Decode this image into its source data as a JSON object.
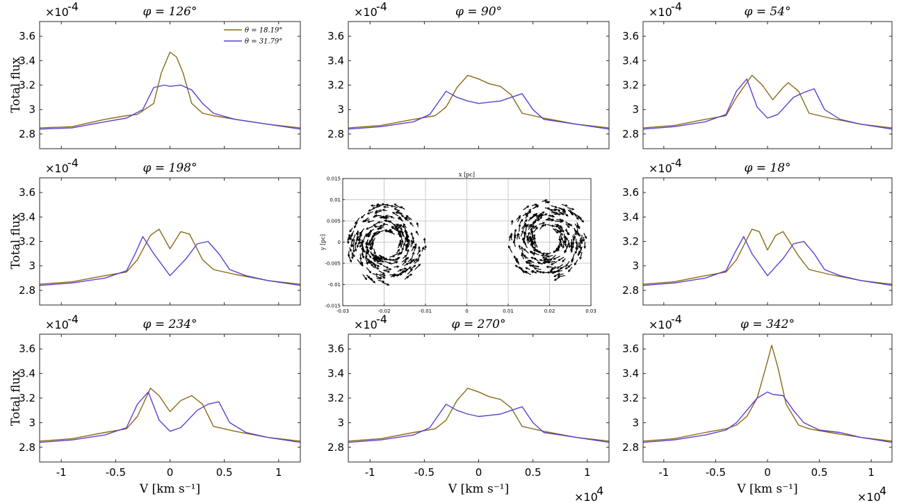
{
  "chart_data": [
    {
      "type": "line",
      "title": "φ = 126°",
      "ylabel": "Total flux",
      "y_exponent": "×10",
      "y_exponent_power": "-4",
      "xlabel": "",
      "x_exponent": "",
      "x_exponent_power": "",
      "xlim": [
        -12000,
        12000
      ],
      "ylim": [
        0.000268,
        0.000372
      ],
      "xticks": [
        -10000,
        -5000,
        0,
        5000,
        10000
      ],
      "xtick_labels": [
        "",
        "",
        "",
        "",
        ""
      ],
      "yticks": [
        0.00028,
        0.0003,
        0.00032,
        0.00034,
        0.00036
      ],
      "ytick_labels": [
        "2.8",
        "3",
        "3.2",
        "3.4",
        "3.6"
      ],
      "legend": {
        "placement": "top-right",
        "entries": [
          "θ = 18.19°",
          "θ = 31.79°"
        ]
      },
      "series": [
        {
          "name": "θ = 18.19°",
          "color": "#8b6914",
          "x": [
            -12000,
            -9000,
            -6000,
            -4000,
            -3000,
            -1500,
            -800,
            0,
            600,
            1200,
            2000,
            3000,
            4000,
            6000,
            9000,
            12000
          ],
          "values": [
            0.000285,
            0.000286,
            0.000292,
            0.000295,
            0.000296,
            0.000305,
            0.00033,
            0.000347,
            0.000343,
            0.00033,
            0.000305,
            0.000297,
            0.000295,
            0.000292,
            0.000288,
            0.000285
          ]
        },
        {
          "name": "θ = 31.79°",
          "color": "#5a3fd0",
          "x": [
            -12000,
            -9000,
            -6000,
            -4000,
            -2500,
            -1500,
            -500,
            0,
            1000,
            2000,
            3000,
            4000,
            6000,
            9000,
            12000
          ],
          "values": [
            0.000284,
            0.000285,
            0.00029,
            0.000293,
            0.0003,
            0.000318,
            0.00032,
            0.000319,
            0.00032,
            0.000316,
            0.000305,
            0.000297,
            0.000292,
            0.000288,
            0.000284
          ]
        }
      ]
    },
    {
      "type": "line",
      "title": "φ = 90°",
      "ylabel": "",
      "y_exponent": "×10",
      "y_exponent_power": "-4",
      "xlabel": "",
      "x_exponent": "",
      "x_exponent_power": "",
      "xlim": [
        -12000,
        12000
      ],
      "ylim": [
        0.000268,
        0.000372
      ],
      "xticks": [
        -10000,
        -5000,
        0,
        5000,
        10000
      ],
      "xtick_labels": [
        "",
        "",
        "",
        "",
        ""
      ],
      "yticks": [
        0.00028,
        0.0003,
        0.00032,
        0.00034,
        0.00036
      ],
      "ytick_labels": [
        "2.8",
        "3",
        "3.2",
        "3.4",
        "3.6"
      ],
      "series": [
        {
          "name": "",
          "color": "#8b6914",
          "x": [
            -12000,
            -9000,
            -6000,
            -4000,
            -3000,
            -2000,
            -1000,
            0,
            1000,
            2000,
            3000,
            4000,
            6000,
            9000,
            12000
          ],
          "values": [
            0.000285,
            0.000287,
            0.000292,
            0.000295,
            0.000302,
            0.000318,
            0.000328,
            0.000325,
            0.000321,
            0.000319,
            0.000312,
            0.000297,
            0.000293,
            0.000288,
            0.000285
          ]
        },
        {
          "name": "",
          "color": "#5a3fd0",
          "x": [
            -12000,
            -9000,
            -6000,
            -4500,
            -3000,
            -2000,
            -1000,
            0,
            1000,
            2000,
            3000,
            4000,
            5000,
            6000,
            9000,
            12000
          ],
          "values": [
            0.000284,
            0.000286,
            0.00029,
            0.000296,
            0.000315,
            0.00031,
            0.000307,
            0.000305,
            0.000306,
            0.000307,
            0.00031,
            0.000313,
            0.0003,
            0.000292,
            0.000288,
            0.000284
          ]
        }
      ]
    },
    {
      "type": "line",
      "title": "φ = 54°",
      "ylabel": "",
      "y_exponent": "×10",
      "y_exponent_power": "-4",
      "xlabel": "",
      "x_exponent": "",
      "x_exponent_power": "",
      "xlim": [
        -12000,
        12000
      ],
      "ylim": [
        0.000268,
        0.000372
      ],
      "xticks": [
        -10000,
        -5000,
        0,
        5000,
        10000
      ],
      "xtick_labels": [
        "",
        "",
        "",
        "",
        ""
      ],
      "yticks": [
        0.00028,
        0.0003,
        0.00032,
        0.00034,
        0.00036
      ],
      "ytick_labels": [
        "2.8",
        "3",
        "3.2",
        "3.4",
        "3.6"
      ],
      "series": [
        {
          "name": "",
          "color": "#8b6914",
          "x": [
            -12000,
            -9000,
            -6000,
            -4000,
            -3000,
            -1500,
            -500,
            500,
            1500,
            2000,
            3000,
            4000,
            6000,
            9000,
            12000
          ],
          "values": [
            0.000285,
            0.000287,
            0.000292,
            0.000295,
            0.00031,
            0.000328,
            0.00032,
            0.000308,
            0.000318,
            0.000322,
            0.000315,
            0.000297,
            0.000293,
            0.000288,
            0.000285
          ]
        },
        {
          "name": "",
          "color": "#5a3fd0",
          "x": [
            -12000,
            -9000,
            -6000,
            -4000,
            -3000,
            -2000,
            -1000,
            0,
            1000,
            2500,
            3500,
            4500,
            5500,
            7000,
            9000,
            12000
          ],
          "values": [
            0.000284,
            0.000286,
            0.00029,
            0.000296,
            0.000315,
            0.000325,
            0.000302,
            0.000293,
            0.000296,
            0.00031,
            0.000314,
            0.000317,
            0.0003,
            0.000292,
            0.000288,
            0.000284
          ]
        }
      ]
    },
    {
      "type": "line",
      "title": "φ = 198°",
      "ylabel": "Total flux",
      "y_exponent": "×10",
      "y_exponent_power": "-4",
      "xlabel": "",
      "x_exponent": "",
      "x_exponent_power": "",
      "xlim": [
        -12000,
        12000
      ],
      "ylim": [
        0.000268,
        0.000372
      ],
      "xticks": [
        -10000,
        -5000,
        0,
        5000,
        10000
      ],
      "xtick_labels": [
        "",
        "",
        "",
        "",
        ""
      ],
      "yticks": [
        0.00028,
        0.0003,
        0.00032,
        0.00034,
        0.00036
      ],
      "ytick_labels": [
        "2.8",
        "3",
        "3.2",
        "3.4",
        "3.6"
      ],
      "series": [
        {
          "name": "",
          "color": "#8b6914",
          "x": [
            -12000,
            -9000,
            -6000,
            -4000,
            -3000,
            -1800,
            -1000,
            0,
            1000,
            1800,
            3000,
            4000,
            6000,
            9000,
            12000
          ],
          "values": [
            0.000285,
            0.000287,
            0.000292,
            0.000295,
            0.000305,
            0.000325,
            0.00033,
            0.000314,
            0.000328,
            0.000326,
            0.000305,
            0.000297,
            0.000293,
            0.000288,
            0.000285
          ]
        },
        {
          "name": "",
          "color": "#5a3fd0",
          "x": [
            -12000,
            -9000,
            -6000,
            -4000,
            -3200,
            -2500,
            -1500,
            0,
            1500,
            2500,
            3500,
            4500,
            5500,
            7000,
            9000,
            12000
          ],
          "values": [
            0.000284,
            0.000286,
            0.00029,
            0.000296,
            0.00031,
            0.000324,
            0.00031,
            0.000292,
            0.000306,
            0.000318,
            0.00032,
            0.00031,
            0.000297,
            0.000292,
            0.000288,
            0.000284
          ]
        }
      ]
    },
    {
      "type": "scatter",
      "title": "",
      "xlabel": "x [pc]",
      "ylabel": "y [pc]",
      "xlim": [
        -0.03,
        0.03
      ],
      "ylim": [
        -0.015,
        0.015
      ],
      "xticks": [
        -0.03,
        -0.02,
        -0.01,
        0,
        0.01,
        0.02,
        0.03
      ],
      "xtick_labels": [
        "-0.03",
        "-0.02",
        "-0.01",
        "0",
        "0.01",
        "0.02",
        "0.03"
      ],
      "yticks": [
        -0.015,
        -0.01,
        -0.005,
        0,
        0.005,
        0.01,
        0.015
      ],
      "ytick_labels": [
        "-0.015",
        "-0.01",
        "-0.005",
        "0",
        "0.005",
        "0.01",
        "0.015"
      ],
      "grid": true,
      "rings": [
        {
          "cx": -0.0195,
          "cy": -0.0005,
          "r_inner": 0.003,
          "r_outer": 0.0095,
          "rotation": "counterclockwise"
        },
        {
          "cx": 0.0195,
          "cy": 0.0005,
          "r_inner": 0.003,
          "r_outer": 0.0095,
          "rotation": "clockwise"
        }
      ]
    },
    {
      "type": "line",
      "title": "φ = 18°",
      "ylabel": "",
      "y_exponent": "×10",
      "y_exponent_power": "-4",
      "xlabel": "",
      "x_exponent": "",
      "x_exponent_power": "",
      "xlim": [
        -12000,
        12000
      ],
      "ylim": [
        0.000268,
        0.000372
      ],
      "xticks": [
        -10000,
        -5000,
        0,
        5000,
        10000
      ],
      "xtick_labels": [
        "",
        "",
        "",
        "",
        ""
      ],
      "yticks": [
        0.00028,
        0.0003,
        0.00032,
        0.00034,
        0.00036
      ],
      "ytick_labels": [
        "2.8",
        "3",
        "3.2",
        "3.4",
        "3.6"
      ],
      "series": [
        {
          "name": "",
          "color": "#8b6914",
          "x": [
            -12000,
            -9000,
            -6000,
            -4000,
            -3000,
            -1500,
            -800,
            0,
            800,
            1500,
            3000,
            4000,
            6000,
            9000,
            12000
          ],
          "values": [
            0.000285,
            0.000287,
            0.000292,
            0.000295,
            0.000305,
            0.00033,
            0.000328,
            0.000313,
            0.000325,
            0.000328,
            0.000308,
            0.000297,
            0.000293,
            0.000288,
            0.000285
          ]
        },
        {
          "name": "",
          "color": "#5a3fd0",
          "x": [
            -12000,
            -9000,
            -6000,
            -4000,
            -3200,
            -2300,
            -1500,
            0,
            1500,
            2500,
            3500,
            4500,
            5500,
            7000,
            9000,
            12000
          ],
          "values": [
            0.000284,
            0.000286,
            0.00029,
            0.000296,
            0.00031,
            0.000324,
            0.00031,
            0.000292,
            0.000306,
            0.000318,
            0.00032,
            0.00031,
            0.000297,
            0.000292,
            0.000288,
            0.000284
          ]
        }
      ]
    },
    {
      "type": "line",
      "title": "φ = 234°",
      "ylabel": "Total flux",
      "y_exponent": "×10",
      "y_exponent_power": "-4",
      "xlabel": "V [km s⁻¹]",
      "x_exponent": "",
      "x_exponent_power": "",
      "xlim": [
        -12000,
        12000
      ],
      "ylim": [
        0.000268,
        0.000372
      ],
      "xticks": [
        -10000,
        -5000,
        0,
        5000,
        10000
      ],
      "xtick_labels": [
        "-1",
        "-0.5",
        "0",
        "0.5",
        "1"
      ],
      "yticks": [
        0.00028,
        0.0003,
        0.00032,
        0.00034,
        0.00036
      ],
      "ytick_labels": [
        "2.8",
        "3",
        "3.2",
        "3.4",
        "3.6"
      ],
      "series": [
        {
          "name": "",
          "color": "#8b6914",
          "x": [
            -12000,
            -9000,
            -6000,
            -4000,
            -3000,
            -1800,
            -1000,
            0,
            1000,
            2000,
            3000,
            4000,
            6000,
            9000,
            12000
          ],
          "values": [
            0.000285,
            0.000287,
            0.000292,
            0.000295,
            0.000305,
            0.000328,
            0.000322,
            0.000309,
            0.000318,
            0.000322,
            0.000315,
            0.000297,
            0.000293,
            0.000288,
            0.000285
          ]
        },
        {
          "name": "",
          "color": "#5a3fd0",
          "x": [
            -12000,
            -9000,
            -6000,
            -4000,
            -3000,
            -2000,
            -1000,
            0,
            1000,
            2500,
            3500,
            4500,
            5500,
            7000,
            9000,
            12000
          ],
          "values": [
            0.000284,
            0.000286,
            0.00029,
            0.000296,
            0.000315,
            0.000325,
            0.000302,
            0.000293,
            0.000296,
            0.00031,
            0.000315,
            0.000317,
            0.0003,
            0.000292,
            0.000288,
            0.000284
          ]
        }
      ]
    },
    {
      "type": "line",
      "title": "φ = 270°",
      "ylabel": "",
      "y_exponent": "×10",
      "y_exponent_power": "-4",
      "xlabel": "V [km s⁻¹]",
      "x_exponent": "×10",
      "x_exponent_power": "4",
      "xlim": [
        -12000,
        12000
      ],
      "ylim": [
        0.000268,
        0.000372
      ],
      "xticks": [
        -10000,
        -5000,
        0,
        5000,
        10000
      ],
      "xtick_labels": [
        "-1",
        "-0.5",
        "0",
        "0.5",
        "1"
      ],
      "yticks": [
        0.00028,
        0.0003,
        0.00032,
        0.00034,
        0.00036
      ],
      "ytick_labels": [
        "2.8",
        "3",
        "3.2",
        "3.4",
        "3.6"
      ],
      "series": [
        {
          "name": "",
          "color": "#8b6914",
          "x": [
            -12000,
            -9000,
            -6000,
            -4000,
            -3000,
            -2000,
            -1000,
            0,
            1000,
            2000,
            3000,
            4000,
            6000,
            9000,
            12000
          ],
          "values": [
            0.000285,
            0.000287,
            0.000292,
            0.000295,
            0.000302,
            0.000318,
            0.000328,
            0.000325,
            0.000321,
            0.000319,
            0.000312,
            0.000297,
            0.000293,
            0.000288,
            0.000285
          ]
        },
        {
          "name": "",
          "color": "#5a3fd0",
          "x": [
            -12000,
            -9000,
            -6000,
            -4500,
            -3000,
            -2000,
            -1000,
            0,
            1000,
            2000,
            3000,
            4000,
            5000,
            6000,
            9000,
            12000
          ],
          "values": [
            0.000284,
            0.000286,
            0.00029,
            0.000296,
            0.000315,
            0.00031,
            0.000307,
            0.000305,
            0.000306,
            0.000307,
            0.00031,
            0.000313,
            0.0003,
            0.000292,
            0.000288,
            0.000284
          ]
        }
      ]
    },
    {
      "type": "line",
      "title": "φ = 342°",
      "ylabel": "",
      "y_exponent": "×10",
      "y_exponent_power": "-4",
      "xlabel": "V [km s⁻¹]",
      "x_exponent": "×10",
      "x_exponent_power": "4",
      "xlim": [
        -12000,
        12000
      ],
      "ylim": [
        0.000268,
        0.000372
      ],
      "xticks": [
        -10000,
        -5000,
        0,
        5000,
        10000
      ],
      "xtick_labels": [
        "-1",
        "-0.5",
        "0",
        "0.5",
        "1"
      ],
      "yticks": [
        0.00028,
        0.0003,
        0.00032,
        0.00034,
        0.00036
      ],
      "ytick_labels": [
        "2.8",
        "3",
        "3.2",
        "3.4",
        "3.6"
      ],
      "series": [
        {
          "name": "",
          "color": "#8b6914",
          "x": [
            -12000,
            -9000,
            -6000,
            -4000,
            -3000,
            -2000,
            -1000,
            0,
            400,
            1000,
            1800,
            3000,
            4000,
            6000,
            9000,
            12000
          ],
          "values": [
            0.000285,
            0.000287,
            0.000292,
            0.000295,
            0.000298,
            0.000305,
            0.00032,
            0.00035,
            0.000363,
            0.000345,
            0.000315,
            0.000298,
            0.000295,
            0.000292,
            0.000288,
            0.000285
          ]
        },
        {
          "name": "",
          "color": "#5a3fd0",
          "x": [
            -12000,
            -9000,
            -6000,
            -4000,
            -3000,
            -2000,
            -1000,
            0,
            500,
            1500,
            2500,
            3500,
            5000,
            7000,
            9000,
            12000
          ],
          "values": [
            0.000284,
            0.000286,
            0.00029,
            0.000294,
            0.0003,
            0.00031,
            0.00032,
            0.000325,
            0.000323,
            0.000322,
            0.00031,
            0.0003,
            0.000294,
            0.000292,
            0.000288,
            0.000284
          ]
        }
      ]
    }
  ]
}
